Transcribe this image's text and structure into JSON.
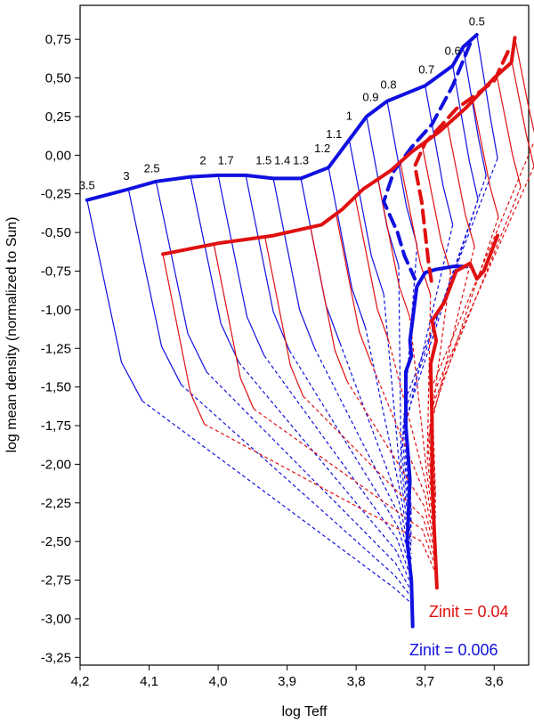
{
  "chart_data": {
    "type": "line",
    "xlabel": "log Teff",
    "ylabel": "log mean density (normalized to Sun)",
    "xlim": [
      4.2,
      3.55
    ],
    "ylim": [
      -3.3,
      0.97
    ],
    "x_reversed": true,
    "grid": false,
    "x_ticks": [
      4.2,
      4.1,
      4.0,
      3.9,
      3.8,
      3.7,
      3.6
    ],
    "x_tick_labels": [
      "4,2",
      "4,1",
      "4,0",
      "3,9",
      "3,8",
      "3,7",
      "3,6"
    ],
    "y_ticks": [
      0.75,
      0.5,
      0.25,
      0.0,
      -0.25,
      -0.5,
      -0.75,
      -1.0,
      -1.25,
      -1.5,
      -1.75,
      -2.0,
      -2.25,
      -2.5,
      -2.75,
      -3.0,
      -3.25
    ],
    "y_tick_labels": [
      "0,75",
      "0,50",
      "0,25",
      "0,00",
      "-0,25",
      "-0,50",
      "-0,75",
      "-1,00",
      "-1,25",
      "-1,50",
      "-1,75",
      "-2,00",
      "-2,25",
      "-2,50",
      "-2,75",
      "-3,00",
      "-3,25"
    ],
    "colors": {
      "low_z": "#1010e0",
      "high_z": "#e01010"
    },
    "mass_labels": [
      {
        "text": "3.5",
        "x": 4.19,
        "y": -0.22
      },
      {
        "text": "3",
        "x": 4.133,
        "y": -0.16
      },
      {
        "text": "2.5",
        "x": 4.096,
        "y": -0.11
      },
      {
        "text": "2",
        "x": 4.022,
        "y": -0.06
      },
      {
        "text": "1.7",
        "x": 3.989,
        "y": -0.06
      },
      {
        "text": "1.5",
        "x": 3.934,
        "y": -0.06
      },
      {
        "text": "1.4",
        "x": 3.907,
        "y": -0.06
      },
      {
        "text": "1.3",
        "x": 3.88,
        "y": -0.06
      },
      {
        "text": "1.2",
        "x": 3.849,
        "y": 0.02
      },
      {
        "text": "1.1",
        "x": 3.832,
        "y": 0.11
      },
      {
        "text": "1",
        "x": 3.81,
        "y": 0.23
      },
      {
        "text": "0.9",
        "x": 3.779,
        "y": 0.35
      },
      {
        "text": "0.8",
        "x": 3.753,
        "y": 0.43
      },
      {
        "text": "0.7",
        "x": 3.698,
        "y": 0.53
      },
      {
        "text": "0.6",
        "x": 3.66,
        "y": 0.65
      },
      {
        "text": "0.5",
        "x": 3.625,
        "y": 0.84
      }
    ],
    "z_labels": [
      {
        "text": "Zinit = 0.04",
        "color": "#e01010"
      },
      {
        "text": "Zinit = 0.006",
        "color": "#1010e0"
      }
    ],
    "series": [
      {
        "metallicity": "0.006",
        "role": "ZAMS",
        "style": "thick-solid",
        "color": "#1010e0",
        "points": [
          [
            4.19,
            -0.29
          ],
          [
            4.13,
            -0.22
          ],
          [
            4.09,
            -0.17
          ],
          [
            4.04,
            -0.14
          ],
          [
            4.0,
            -0.13
          ],
          [
            3.96,
            -0.13
          ],
          [
            3.92,
            -0.15
          ],
          [
            3.88,
            -0.15
          ],
          [
            3.84,
            -0.08
          ],
          [
            3.81,
            0.1
          ],
          [
            3.785,
            0.25
          ],
          [
            3.755,
            0.35
          ],
          [
            3.7,
            0.45
          ],
          [
            3.66,
            0.58
          ],
          [
            3.645,
            0.7
          ],
          [
            3.625,
            0.78
          ]
        ]
      },
      {
        "metallicity": "0.006",
        "role": "TAMS",
        "style": "thick-dashed",
        "color": "#1010e0",
        "points": [
          [
            3.635,
            0.72
          ],
          [
            3.66,
            0.45
          ],
          [
            3.69,
            0.2
          ],
          [
            3.72,
            0.05
          ],
          [
            3.745,
            -0.1
          ],
          [
            3.76,
            -0.3
          ],
          [
            3.74,
            -0.5
          ],
          [
            3.73,
            -0.65
          ],
          [
            3.715,
            -0.8
          ]
        ]
      },
      {
        "metallicity": "0.006",
        "role": "RGB",
        "style": "thick-solid",
        "color": "#1010e0",
        "points": [
          [
            3.64,
            -0.72
          ],
          [
            3.66,
            -0.72
          ],
          [
            3.685,
            -0.74
          ],
          [
            3.7,
            -0.76
          ],
          [
            3.712,
            -0.85
          ],
          [
            3.722,
            -1.2
          ],
          [
            3.72,
            -1.3
          ],
          [
            3.728,
            -1.4
          ],
          [
            3.728,
            -1.75
          ],
          [
            3.722,
            -2.1
          ],
          [
            3.726,
            -2.5
          ],
          [
            3.72,
            -2.75
          ],
          [
            3.718,
            -3.05
          ]
        ]
      },
      {
        "metallicity": "0.04",
        "role": "ZAMS",
        "style": "thick-solid",
        "color": "#e01010",
        "points": [
          [
            4.08,
            -0.64
          ],
          [
            4.0,
            -0.57
          ],
          [
            3.92,
            -0.52
          ],
          [
            3.85,
            -0.45
          ],
          [
            3.82,
            -0.35
          ],
          [
            3.79,
            -0.22
          ],
          [
            3.75,
            -0.1
          ],
          [
            3.72,
            0.02
          ],
          [
            3.68,
            0.15
          ],
          [
            3.64,
            0.31
          ],
          [
            3.6,
            0.5
          ],
          [
            3.575,
            0.6
          ],
          [
            3.57,
            0.76
          ]
        ]
      },
      {
        "metallicity": "0.04",
        "role": "TAMS",
        "style": "thick-dashed",
        "color": "#e01010",
        "points": [
          [
            3.58,
            0.67
          ],
          [
            3.6,
            0.48
          ],
          [
            3.63,
            0.38
          ],
          [
            3.655,
            0.3
          ],
          [
            3.675,
            0.2
          ],
          [
            3.7,
            0.08
          ],
          [
            3.715,
            -0.07
          ],
          [
            3.705,
            -0.3
          ],
          [
            3.7,
            -0.5
          ],
          [
            3.695,
            -0.7
          ],
          [
            3.69,
            -0.84
          ]
        ]
      },
      {
        "metallicity": "0.04",
        "role": "RGB",
        "style": "thick-solid",
        "color": "#e01010",
        "points": [
          [
            3.595,
            -0.52
          ],
          [
            3.615,
            -0.75
          ],
          [
            3.625,
            -0.8
          ],
          [
            3.635,
            -0.7
          ],
          [
            3.655,
            -0.75
          ],
          [
            3.672,
            -0.95
          ],
          [
            3.69,
            -1.07
          ],
          [
            3.684,
            -1.2
          ],
          [
            3.692,
            -1.35
          ],
          [
            3.69,
            -1.7
          ],
          [
            3.69,
            -2.1
          ],
          [
            3.686,
            -2.5
          ],
          [
            3.683,
            -2.8
          ]
        ]
      }
    ]
  }
}
